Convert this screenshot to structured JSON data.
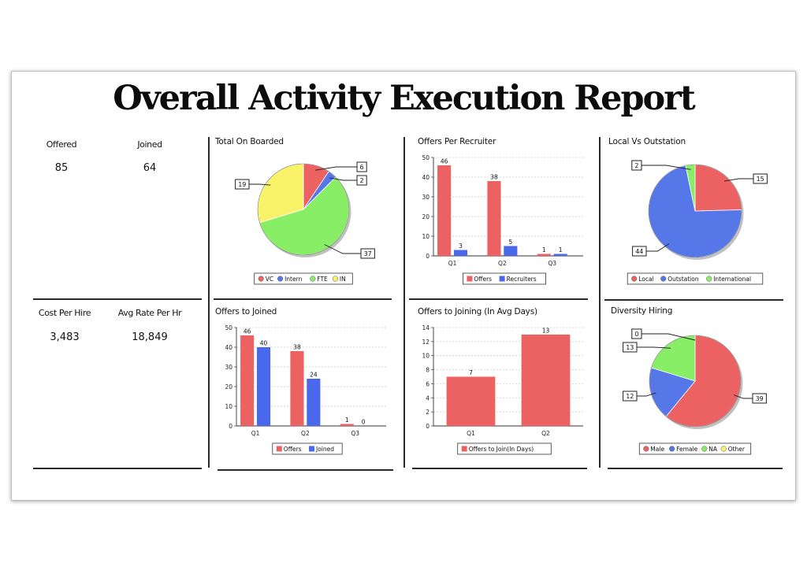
{
  "title": "Overall Activity Execution Report",
  "kpis": {
    "offered_label": "Offered",
    "offered_value": "85",
    "joined_label": "Joined",
    "joined_value": "64",
    "cost_label": "Cost Per Hire",
    "cost_value": "3,483",
    "avg_rate_label": "Avg Rate Per Hr",
    "avg_rate_value": "18,849"
  },
  "panel_titles": {
    "onboarded": "Total On Boarded",
    "offers_per_recruiter": "Offers Per Recruiter",
    "local_vs_outstation": "Local Vs Outstation",
    "offers_to_joined": "Offers to Joined",
    "offers_to_joining": "Offers to Joining (In Avg Days)",
    "diversity": "Diversity Hiring"
  },
  "chart_data": [
    {
      "id": "onboarded",
      "type": "pie",
      "title": "Total On Boarded",
      "labels": [
        "VC",
        "Intern",
        "FTE",
        "IN"
      ],
      "values": [
        6,
        2,
        37,
        19
      ],
      "colors": [
        "#ec6262",
        "#5577e8",
        "#88ee66",
        "#f9f36a"
      ]
    },
    {
      "id": "offers_per_recruiter",
      "type": "bar",
      "title": "Offers Per Recruiter",
      "categories": [
        "Q1",
        "Q2",
        "Q3"
      ],
      "series": [
        {
          "name": "Offers",
          "values": [
            46,
            38,
            1
          ],
          "color": "#ec6262"
        },
        {
          "name": "Recruiters",
          "values": [
            3,
            5,
            1
          ],
          "color": "#4a68ec"
        }
      ],
      "ylim": [
        0,
        50
      ],
      "yticks": [
        0,
        10,
        20,
        30,
        40,
        50
      ]
    },
    {
      "id": "local_vs_outstation",
      "type": "pie",
      "title": "Local Vs Outstation",
      "labels": [
        "Local",
        "Outstation",
        "International"
      ],
      "values": [
        15,
        44,
        2
      ],
      "colors": [
        "#ec6262",
        "#5577e8",
        "#88ee66"
      ]
    },
    {
      "id": "offers_to_joined",
      "type": "bar",
      "title": "Offers to Joined",
      "categories": [
        "Q1",
        "Q2",
        "Q3"
      ],
      "series": [
        {
          "name": "Offers",
          "values": [
            46,
            38,
            1
          ],
          "color": "#ec6262"
        },
        {
          "name": "Joined",
          "values": [
            40,
            24,
            0
          ],
          "color": "#4a68ec"
        }
      ],
      "ylim": [
        0,
        50
      ],
      "yticks": [
        0,
        10,
        20,
        30,
        40,
        50
      ]
    },
    {
      "id": "offers_to_joining",
      "type": "bar",
      "title": "Offers to Joining (In Avg Days)",
      "categories": [
        "Q1",
        "Q2"
      ],
      "series": [
        {
          "name": "Offers to Join(In Days)",
          "values": [
            7,
            13
          ],
          "color": "#ec6262"
        }
      ],
      "ylim": [
        0,
        14
      ],
      "yticks": [
        0,
        2,
        4,
        6,
        8,
        10,
        12,
        14
      ]
    },
    {
      "id": "diversity",
      "type": "pie",
      "title": "Diversity Hiring",
      "labels": [
        "Male",
        "Female",
        "NA",
        "Other"
      ],
      "values": [
        39,
        12,
        13,
        0
      ],
      "colors": [
        "#ec6262",
        "#5577e8",
        "#88ee66",
        "#f9f36a"
      ]
    }
  ]
}
